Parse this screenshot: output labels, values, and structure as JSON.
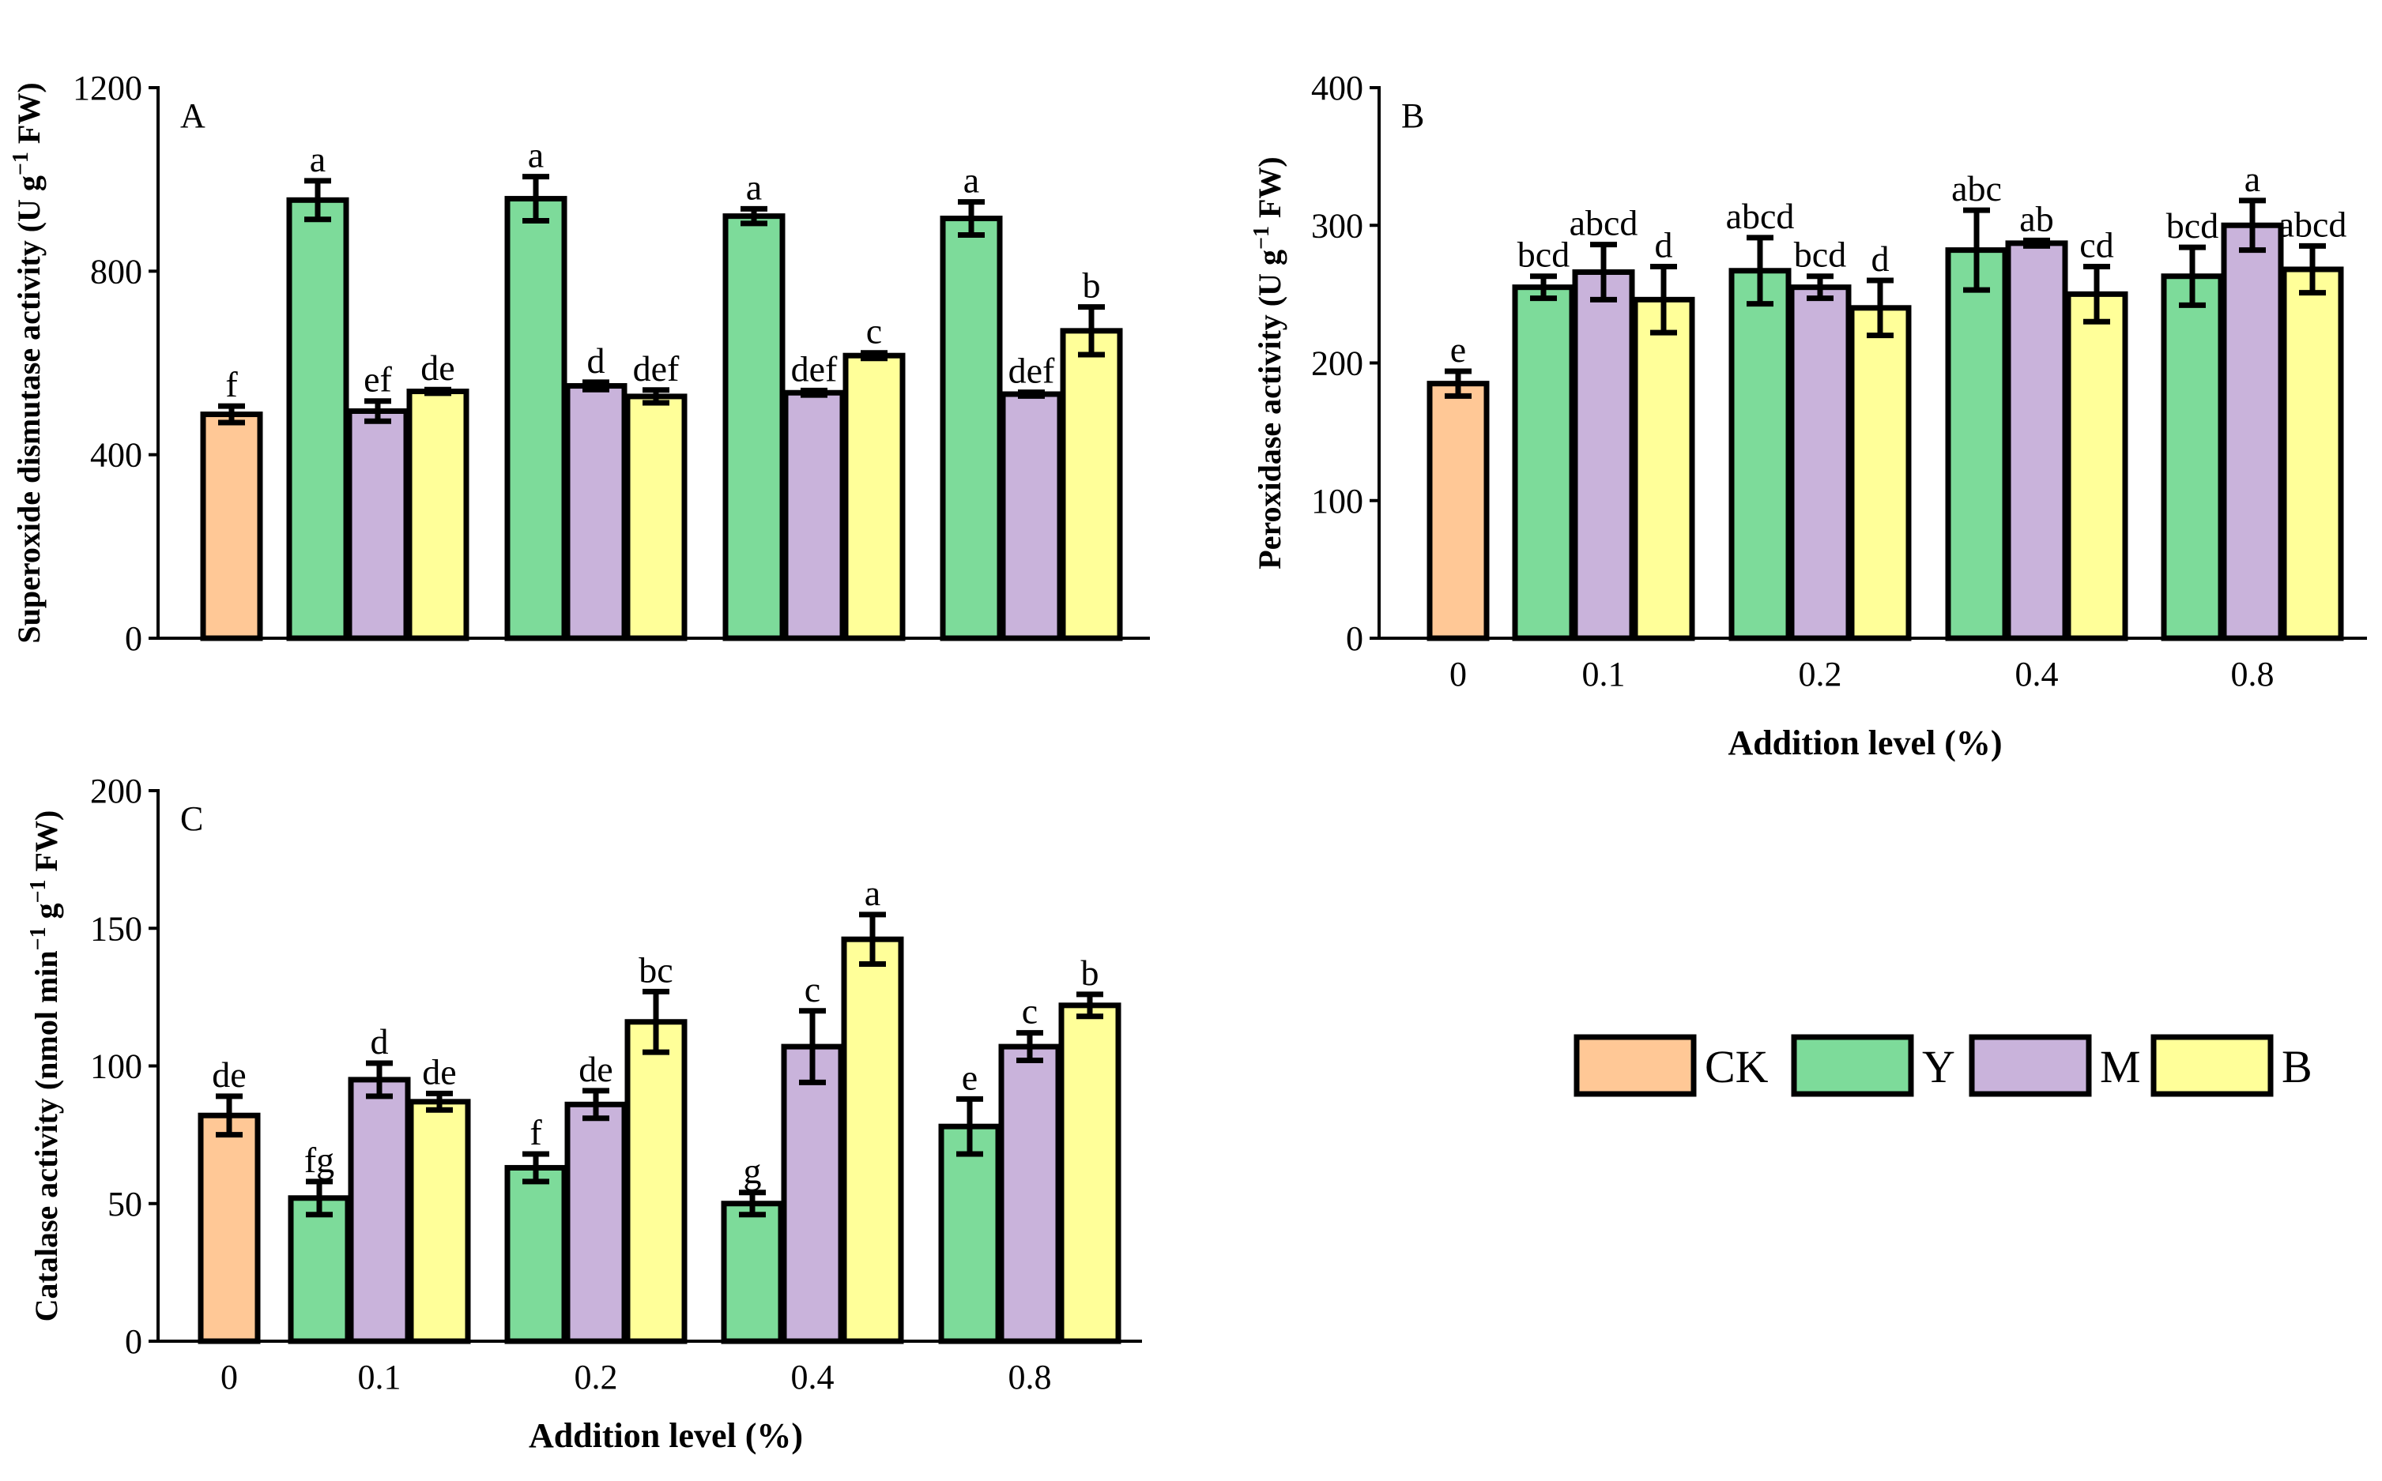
{
  "chart_data": [
    {
      "panel": "A",
      "type": "bar",
      "ylabel_main": "Superoxide dismutase activity (U g",
      "ylabel_sup": "−1",
      "ylabel_end": " FW)",
      "xlabel": "",
      "ylim": [
        0,
        1200
      ],
      "yticks": [
        "0",
        "400",
        "800",
        "1200"
      ],
      "show_x_ticklabels": false,
      "categories": [
        "0",
        "0.1",
        "0.2",
        "0.4",
        "0.8"
      ],
      "ck": {
        "value": 488,
        "err": 18,
        "label": "f"
      },
      "groups": [
        {
          "Y": {
            "value": 955,
            "err": 42,
            "label": "a"
          },
          "M": {
            "value": 495,
            "err": 22,
            "label": "ef"
          },
          "B": {
            "value": 538,
            "err": 4,
            "label": "de"
          }
        },
        {
          "Y": {
            "value": 958,
            "err": 48,
            "label": "a"
          },
          "M": {
            "value": 550,
            "err": 8,
            "label": "d"
          },
          "B": {
            "value": 527,
            "err": 14,
            "label": "def"
          }
        },
        {
          "Y": {
            "value": 920,
            "err": 16,
            "label": "a"
          },
          "M": {
            "value": 535,
            "err": 5,
            "label": "def"
          },
          "B": {
            "value": 616,
            "err": 6,
            "label": "c"
          }
        },
        {
          "Y": {
            "value": 915,
            "err": 36,
            "label": "a"
          },
          "M": {
            "value": 532,
            "err": 4,
            "label": "def"
          },
          "B": {
            "value": 670,
            "err": 52,
            "label": "b"
          }
        }
      ]
    },
    {
      "panel": "B",
      "type": "bar",
      "ylabel_main": "Peroxidase activity (U g",
      "ylabel_sup": "−1",
      "ylabel_end": " FW)",
      "xlabel": "Addition level (%)",
      "ylim": [
        0,
        400
      ],
      "yticks": [
        "0",
        "100",
        "200",
        "300",
        "400"
      ],
      "show_x_ticklabels": true,
      "categories": [
        "0",
        "0.1",
        "0.2",
        "0.4",
        "0.8"
      ],
      "ck": {
        "value": 185,
        "err": 9,
        "label": "e"
      },
      "groups": [
        {
          "Y": {
            "value": 255,
            "err": 8,
            "label": "bcd"
          },
          "M": {
            "value": 266,
            "err": 20,
            "label": "abcd"
          },
          "B": {
            "value": 246,
            "err": 24,
            "label": "d"
          }
        },
        {
          "Y": {
            "value": 267,
            "err": 24,
            "label": "abcd"
          },
          "M": {
            "value": 255,
            "err": 8,
            "label": "bcd"
          },
          "B": {
            "value": 240,
            "err": 20,
            "label": "d"
          }
        },
        {
          "Y": {
            "value": 282,
            "err": 29,
            "label": "abc"
          },
          "M": {
            "value": 287,
            "err": 2,
            "label": "ab"
          },
          "B": {
            "value": 250,
            "err": 20,
            "label": "cd"
          }
        },
        {
          "Y": {
            "value": 263,
            "err": 21,
            "label": "bcd"
          },
          "M": {
            "value": 300,
            "err": 18,
            "label": "a"
          },
          "B": {
            "value": 268,
            "err": 17,
            "label": "abcd"
          }
        }
      ]
    },
    {
      "panel": "C",
      "type": "bar",
      "ylabel_main": "Catalase activity (nmol min",
      "ylabel_sup": "−1",
      "ylabel_mid": " g",
      "ylabel_sup2": "−1",
      "ylabel_end": " FW)",
      "xlabel": "Addition level (%)",
      "ylim": [
        0,
        200
      ],
      "yticks": [
        "0",
        "50",
        "100",
        "150",
        "200"
      ],
      "show_x_ticklabels": true,
      "categories": [
        "0",
        "0.1",
        "0.2",
        "0.4",
        "0.8"
      ],
      "ck": {
        "value": 82,
        "err": 7,
        "label": "de"
      },
      "groups": [
        {
          "Y": {
            "value": 52,
            "err": 6,
            "label": "fg"
          },
          "M": {
            "value": 95,
            "err": 6,
            "label": "d"
          },
          "B": {
            "value": 87,
            "err": 3,
            "label": "de"
          }
        },
        {
          "Y": {
            "value": 63,
            "err": 5,
            "label": "f"
          },
          "M": {
            "value": 86,
            "err": 5,
            "label": "de"
          },
          "B": {
            "value": 116,
            "err": 11,
            "label": "bc"
          }
        },
        {
          "Y": {
            "value": 50,
            "err": 4,
            "label": "g"
          },
          "M": {
            "value": 107,
            "err": 13,
            "label": "c"
          },
          "B": {
            "value": 146,
            "err": 9,
            "label": "a"
          }
        },
        {
          "Y": {
            "value": 78,
            "err": 10,
            "label": "e"
          },
          "M": {
            "value": 107,
            "err": 5,
            "label": "c"
          },
          "B": {
            "value": 122,
            "err": 4,
            "label": "b"
          }
        }
      ]
    }
  ],
  "legend": {
    "items": [
      {
        "key": "CK",
        "label": "CK",
        "color": "#FFC896"
      },
      {
        "key": "Y",
        "label": "Y",
        "color": "#7DDB9A"
      },
      {
        "key": "M",
        "label": "M",
        "color": "#C9B3DB"
      },
      {
        "key": "B",
        "label": "B",
        "color": "#FFFF99"
      }
    ]
  }
}
